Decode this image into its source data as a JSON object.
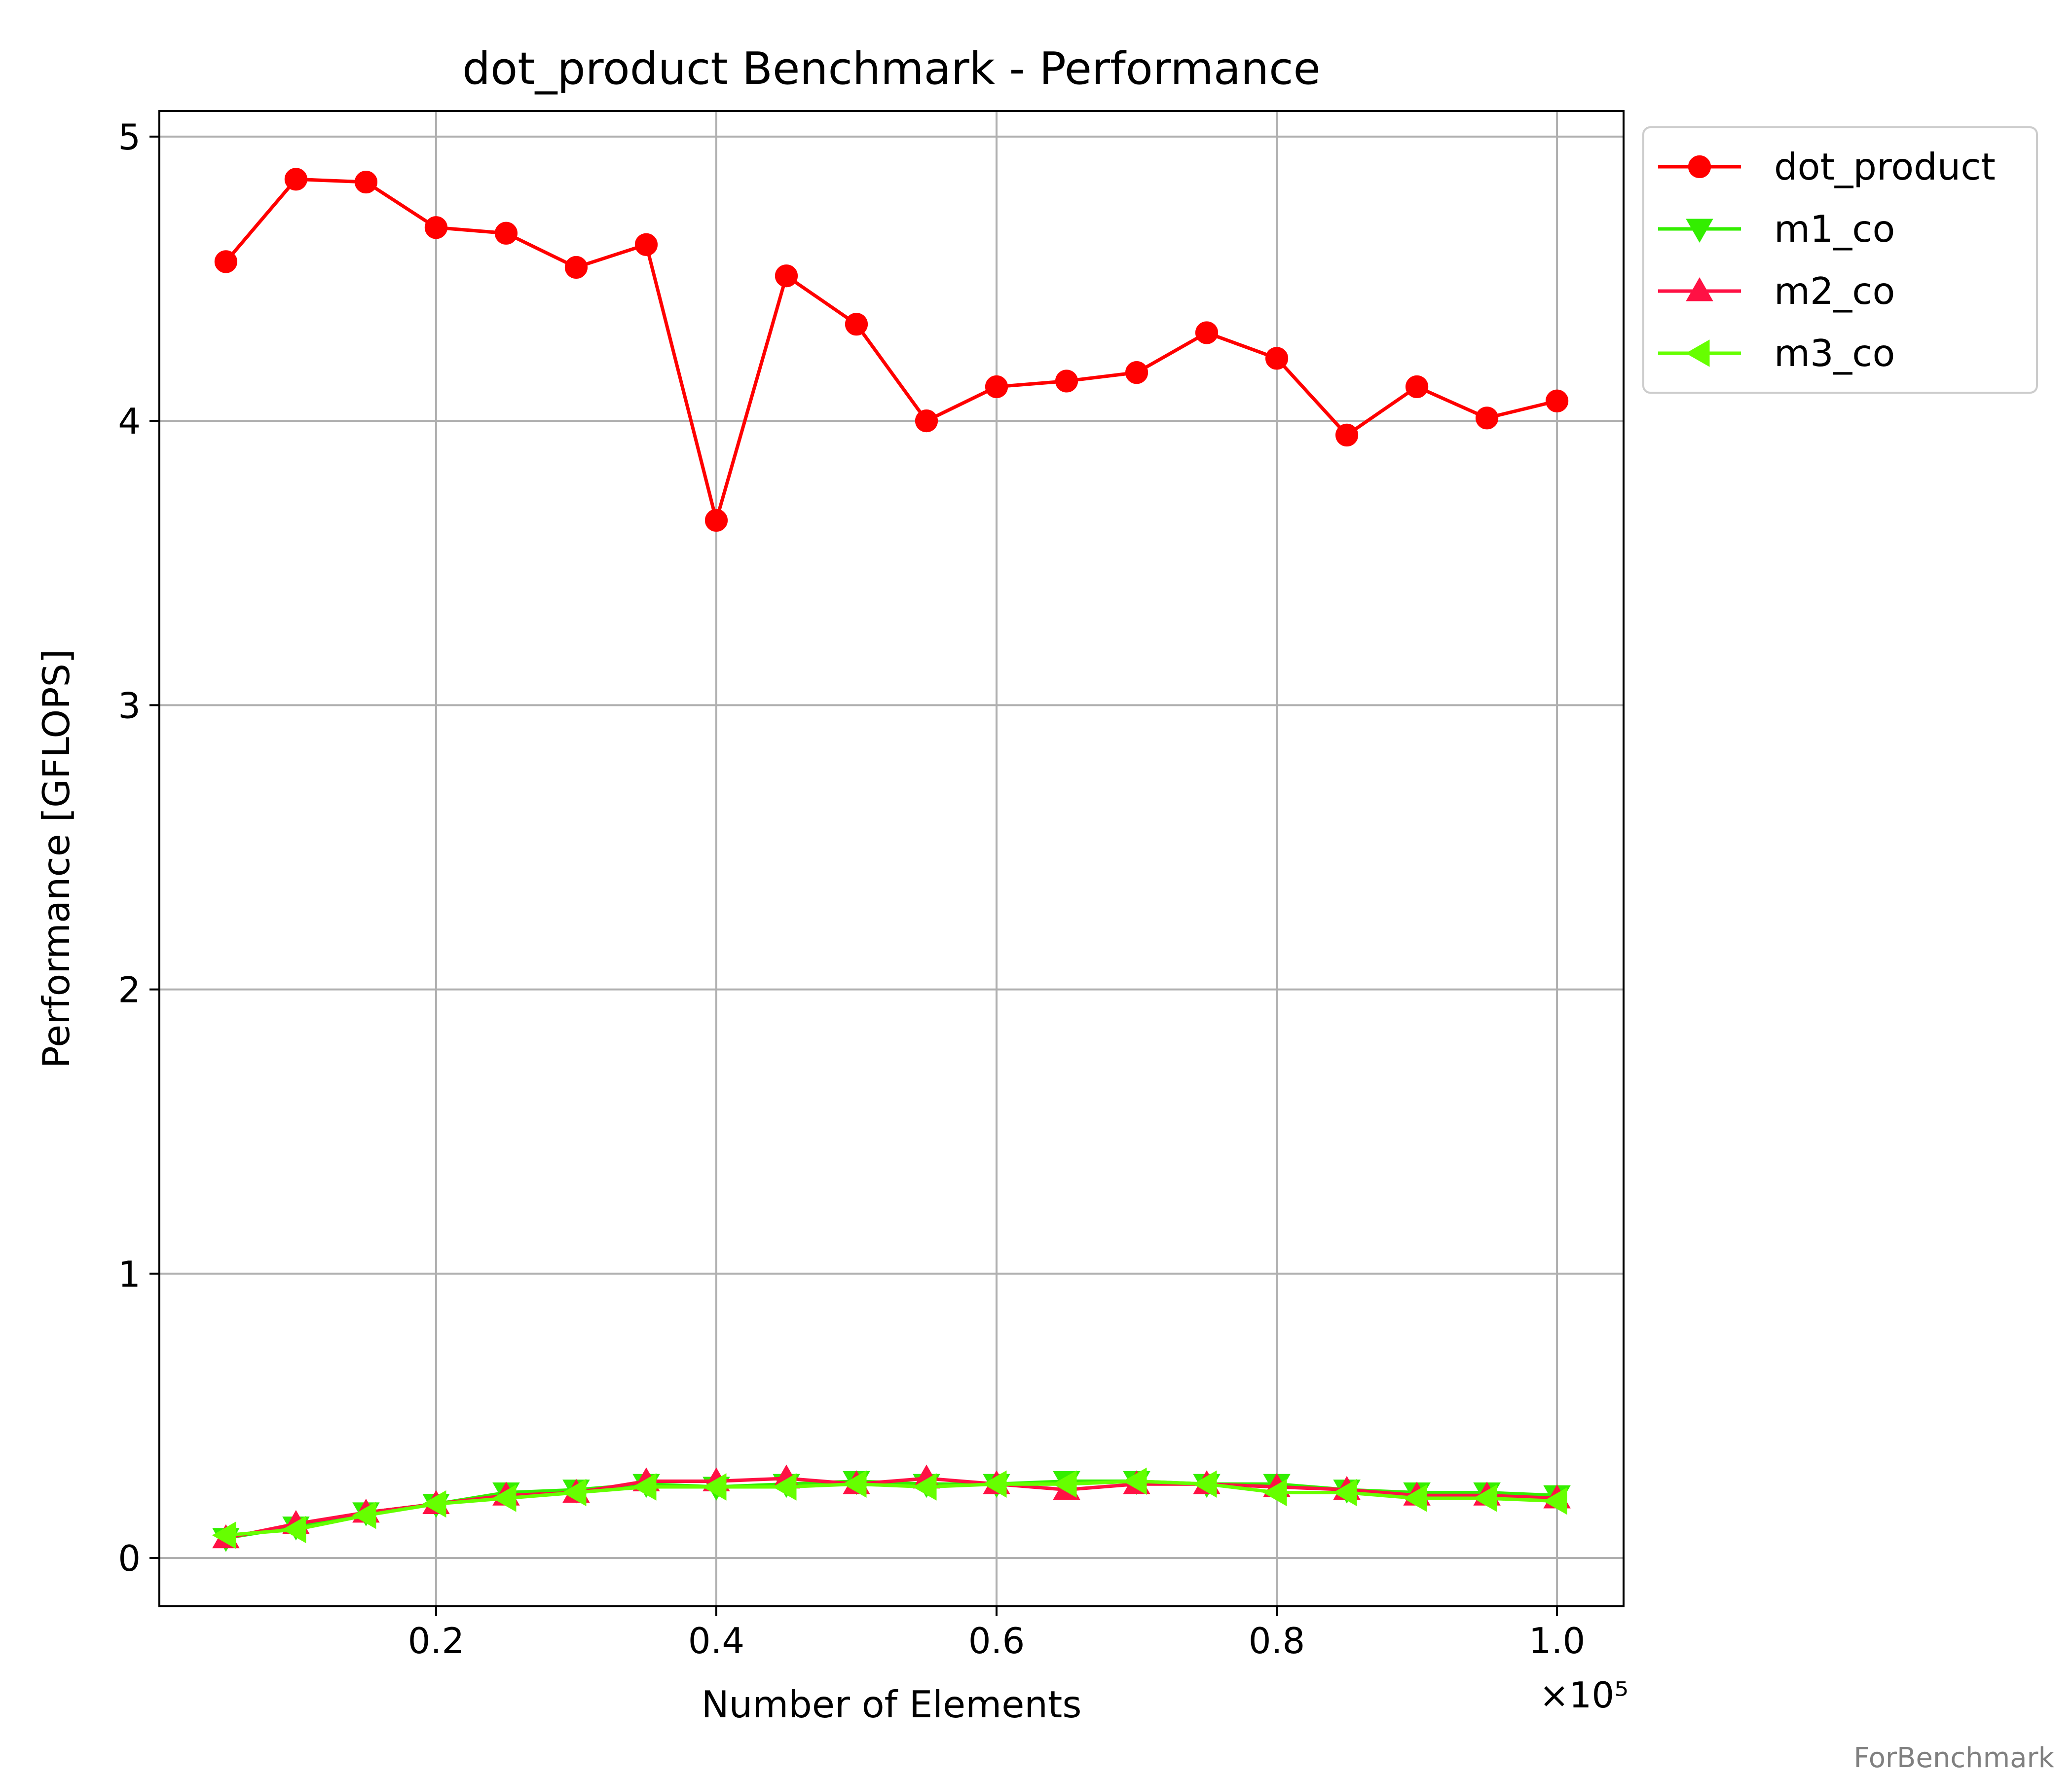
{
  "footer": "ForBenchmark",
  "chart_data": {
    "type": "line",
    "title": "dot_product Benchmark - Performance",
    "xlabel": "Number of Elements",
    "ylabel": "Performance [GFLOPS]",
    "x_offset_text": "×10⁵",
    "x_scale": 100000,
    "xlim": [
      0.0025,
      1.0475
    ],
    "ylim": [
      -0.17,
      5.09
    ],
    "x_ticks": [
      0.2,
      0.4,
      0.6,
      0.8,
      1.0
    ],
    "x_tick_labels": [
      "0.2",
      "0.4",
      "0.6",
      "0.8",
      "1.0"
    ],
    "y_ticks": [
      0,
      1,
      2,
      3,
      4,
      5
    ],
    "y_tick_labels": [
      "0",
      "1",
      "2",
      "3",
      "4",
      "5"
    ],
    "grid": true,
    "legend_position": "outside-top-right",
    "x": [
      0.05,
      0.1,
      0.15,
      0.2,
      0.25,
      0.3,
      0.35,
      0.4,
      0.45,
      0.5,
      0.55,
      0.6,
      0.65,
      0.7,
      0.75,
      0.8,
      0.85,
      0.9,
      0.95,
      1.0
    ],
    "series": [
      {
        "name": "dot_product",
        "color": "#ff0000",
        "marker": "circle",
        "values": [
          4.56,
          4.85,
          4.84,
          4.68,
          4.66,
          4.54,
          4.62,
          3.65,
          4.51,
          4.34,
          4.0,
          4.12,
          4.14,
          4.17,
          4.31,
          4.22,
          3.95,
          4.12,
          4.01,
          4.07
        ]
      },
      {
        "name": "m1_co",
        "color": "#33ee00",
        "marker": "triangle-down",
        "values": [
          0.07,
          0.11,
          0.16,
          0.19,
          0.23,
          0.24,
          0.26,
          0.25,
          0.26,
          0.27,
          0.26,
          0.26,
          0.27,
          0.27,
          0.26,
          0.26,
          0.24,
          0.23,
          0.23,
          0.22
        ]
      },
      {
        "name": "m2_co",
        "color": "#ff1144",
        "marker": "triangle-up",
        "values": [
          0.07,
          0.12,
          0.16,
          0.19,
          0.22,
          0.23,
          0.27,
          0.27,
          0.28,
          0.26,
          0.28,
          0.26,
          0.24,
          0.26,
          0.26,
          0.25,
          0.24,
          0.22,
          0.22,
          0.21
        ]
      },
      {
        "name": "m3_co",
        "color": "#66ff00",
        "marker": "triangle-left",
        "values": [
          0.08,
          0.1,
          0.15,
          0.19,
          0.21,
          0.23,
          0.25,
          0.25,
          0.25,
          0.26,
          0.25,
          0.26,
          0.26,
          0.27,
          0.26,
          0.23,
          0.23,
          0.21,
          0.21,
          0.2
        ]
      }
    ]
  }
}
